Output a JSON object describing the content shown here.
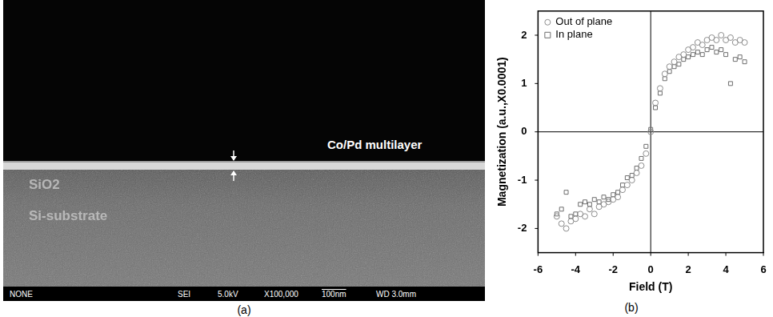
{
  "image_panel": {
    "label": "(a)",
    "annotations": [
      "Co/Pd multilayer",
      "SiO2",
      "Si-substrate"
    ],
    "info_bar": [
      "NONE",
      "SEI",
      "5.0kV",
      "X100,000",
      "100nm",
      "WD 3.0mm"
    ]
  },
  "chart_panel": {
    "label": "(b)"
  },
  "chart_data": {
    "type": "scatter",
    "x_label": "Field (T)",
    "y_label": "Magnetization (a.u.,X0.0001)",
    "x": [
      -5,
      -4.75,
      -4.5,
      -4.25,
      -4,
      -3.75,
      -3.5,
      -3.25,
      -3,
      -2.75,
      -2.5,
      -2.25,
      -2,
      -1.75,
      -1.5,
      -1.25,
      -1,
      -0.75,
      -0.5,
      -0.25,
      0,
      0.25,
      0.5,
      0.75,
      1,
      1.25,
      1.5,
      1.75,
      2,
      2.25,
      2.5,
      2.75,
      3,
      3.25,
      3.5,
      3.75,
      4,
      4.25,
      4.5,
      4.75,
      5
    ],
    "series": [
      {
        "name": "Out of plane",
        "color": "#8c8c8c",
        "marker": "circle",
        "values": [
          -1.75,
          -1.9,
          -2.0,
          -1.85,
          -1.8,
          -1.7,
          -1.75,
          -1.6,
          -1.7,
          -1.55,
          -1.5,
          -1.45,
          -1.4,
          -1.35,
          -1.2,
          -1.1,
          -1.0,
          -0.85,
          -0.7,
          -0.45,
          0.0,
          0.6,
          0.9,
          1.2,
          1.35,
          1.45,
          1.55,
          1.6,
          1.7,
          1.75,
          1.85,
          1.8,
          1.9,
          1.95,
          1.9,
          2.0,
          1.9,
          1.95,
          1.85,
          1.9,
          1.85
        ]
      },
      {
        "name": "In plane",
        "color": "#6e6e6e",
        "marker": "square",
        "values": [
          -1.7,
          -1.6,
          -1.25,
          -1.75,
          -1.7,
          -1.5,
          -1.45,
          -1.5,
          -1.4,
          -1.45,
          -1.35,
          -1.4,
          -1.3,
          -1.25,
          -1.1,
          -0.95,
          -0.9,
          -0.75,
          -0.55,
          -0.3,
          0.05,
          0.5,
          0.8,
          1.1,
          1.25,
          1.35,
          1.4,
          1.5,
          1.55,
          1.6,
          1.65,
          1.6,
          1.7,
          1.75,
          1.65,
          1.7,
          1.6,
          1.0,
          1.5,
          1.55,
          1.45
        ]
      }
    ],
    "xlim": [
      -6,
      6
    ],
    "xticks": [
      -6,
      -4,
      -2,
      0,
      2,
      4,
      6
    ],
    "ylim": [
      -2.5,
      2.5
    ],
    "yticks": [
      -2,
      -1,
      0,
      1,
      2
    ],
    "grid": false,
    "legend": "upper left"
  }
}
